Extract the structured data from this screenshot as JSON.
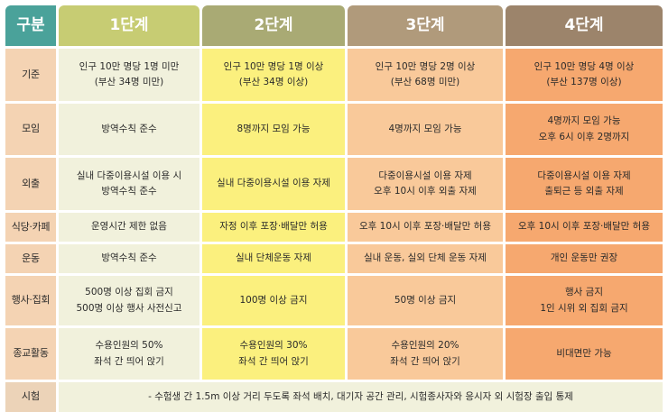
{
  "headers": {
    "category": "구분",
    "stages": [
      "1단계",
      "2단계",
      "3단계",
      "4단계"
    ]
  },
  "rows": [
    {
      "label": "기준",
      "cells": [
        [
          "인구 10만 명당 1명 미만",
          "(부산 34명 미만)"
        ],
        [
          "인구 10만 명당 1명 이상",
          "(부산 34명 이상)"
        ],
        [
          "인구 10만 명당 2명 이상",
          "(부산 68명 미만)"
        ],
        [
          "인구 10만 명당 4명 이상",
          "(부산 137명 이상)"
        ]
      ]
    },
    {
      "label": "모임",
      "cells": [
        [
          "방역수칙 준수"
        ],
        [
          "8명까지 모임 가능"
        ],
        [
          "4명까지 모임 가능"
        ],
        [
          "4명까지 모임 가능",
          "오후 6시 이후 2명까지"
        ]
      ]
    },
    {
      "label": "외출",
      "cells": [
        [
          "실내 다중이용시설 이용 시",
          "방역수칙 준수"
        ],
        [
          "실내 다중이용시설 이용 자제"
        ],
        [
          "다중이용시설 이용 자제",
          "오후 10시 이후 외출 자제"
        ],
        [
          "다중이용시설 이용 자제",
          "출퇴근 등 외출 자제"
        ]
      ]
    },
    {
      "label": "식당·카페",
      "cells": [
        [
          "운영시간 제한 없음"
        ],
        [
          "자정 이후 포장·배달만 허용"
        ],
        [
          "오후 10시 이후 포장·배달만 허용"
        ],
        [
          "오후 10시 이후 포장·배달만 허용"
        ]
      ]
    },
    {
      "label": "운동",
      "cells": [
        [
          "방역수칙 준수"
        ],
        [
          "실내 단체운동 자제"
        ],
        [
          "실내 운동, 실외 단체 운동 자제"
        ],
        [
          "개인 운동만 권장"
        ]
      ]
    },
    {
      "label": "행사·집회",
      "cells": [
        [
          "500명 이상 집회 금지",
          "500명 이상 행사 사전신고"
        ],
        [
          "100명 이상 금지"
        ],
        [
          "50명 이상 금지"
        ],
        [
          "행사 금지",
          "1인 시위 외 집회 금지"
        ]
      ]
    },
    {
      "label": "종교활동",
      "cells": [
        [
          "수용인원의 50%",
          "좌석 간 띄어 앉기"
        ],
        [
          "수용인원의 30%",
          "좌석 간 띄어 앉기"
        ],
        [
          "수용인원의 20%",
          "좌석 간 띄어 앉기"
        ],
        [
          "비대면만 가능"
        ]
      ]
    }
  ],
  "exam": {
    "label": "시험",
    "text": "- 수험생 간 1.5m 이상 거리 두도록 좌석 배치, 대기자 공간 관리, 시험종사자와 응시자 외 시험장 출입 통제"
  },
  "colors": {
    "header_category": "#4aa29a",
    "header_stage1": "#c7cc73",
    "header_stage2": "#a9aa74",
    "header_stage3": "#b09a7b",
    "header_stage4": "#9c846b",
    "row_label": "#f4d3b3",
    "stage1": "#f1f1dc",
    "stage2": "#fbf07e",
    "stage3": "#f9c99a",
    "stage4": "#f6a86f"
  }
}
